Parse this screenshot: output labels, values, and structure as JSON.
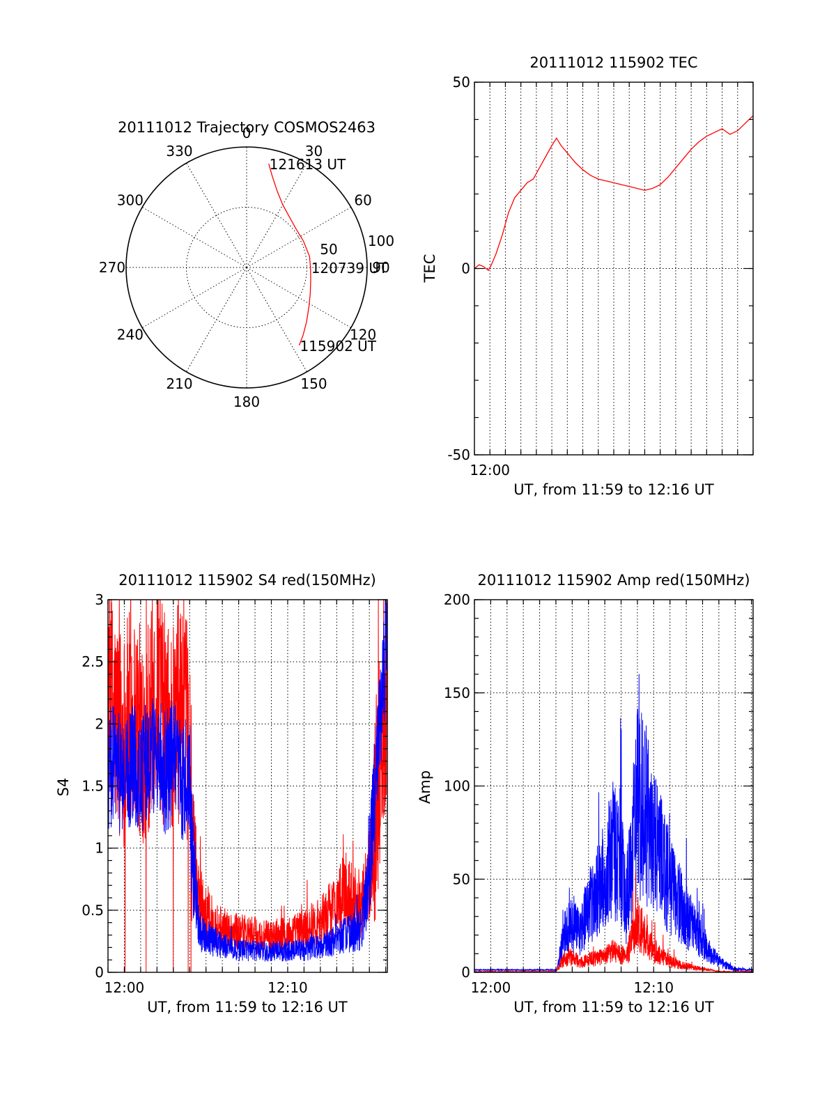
{
  "chart_data": [
    {
      "id": "polar",
      "type": "polar-trajectory",
      "title": "20111012 Trajectory COSMOS2463",
      "azimuth_labels": [
        {
          "az": 0,
          "text": "0"
        },
        {
          "az": 30,
          "text": "30"
        },
        {
          "az": 60,
          "text": "60"
        },
        {
          "az": 90,
          "text": "90"
        },
        {
          "az": 120,
          "text": "120"
        },
        {
          "az": 150,
          "text": "150"
        },
        {
          "az": 180,
          "text": "180"
        },
        {
          "az": 210,
          "text": "210"
        },
        {
          "az": 240,
          "text": "240"
        },
        {
          "az": 270,
          "text": "270"
        },
        {
          "az": 300,
          "text": "300"
        },
        {
          "az": 330,
          "text": "330"
        }
      ],
      "radius_labels": [
        {
          "r": 50,
          "text": "50"
        },
        {
          "r": 100,
          "text": "100"
        }
      ],
      "r_max": 100,
      "track_color": "#ff0000",
      "track": [
        [
          12,
          88
        ],
        [
          16,
          78
        ],
        [
          22,
          68
        ],
        [
          30,
          60
        ],
        [
          40,
          55
        ],
        [
          52,
          52
        ],
        [
          65,
          52
        ],
        [
          80,
          53
        ],
        [
          90,
          53
        ],
        [
          100,
          54
        ],
        [
          112,
          57
        ],
        [
          122,
          61
        ],
        [
          132,
          67
        ],
        [
          140,
          73
        ],
        [
          146,
          78
        ]
      ],
      "time_labels": [
        {
          "text": "121613 UT",
          "az": 12,
          "r": 88
        },
        {
          "text": "120739 UT",
          "az": 90,
          "r": 53
        },
        {
          "text": "115902 UT",
          "az": 146,
          "r": 78
        }
      ]
    },
    {
      "id": "tec",
      "type": "line",
      "title": "20111012 115902 TEC",
      "xlabel": "UT, from 11:59 to 12:16 UT",
      "ylabel": "TEC",
      "x_unit": "minutes after 11:59 UT",
      "xlim": [
        0,
        18
      ],
      "ylim": [
        -50,
        50
      ],
      "yticks": [
        -50,
        0,
        50
      ],
      "xtick_labels": [
        {
          "x": 1,
          "text": "12:00"
        }
      ],
      "grid": true,
      "series": [
        {
          "color": "#ff0000",
          "x": [
            0,
            0.3,
            0.6,
            0.9,
            1.1,
            1.4,
            1.8,
            2.2,
            2.6,
            3.0,
            3.4,
            3.8,
            4.2,
            4.6,
            5.0,
            5.3,
            5.6,
            6.0,
            6.5,
            7.0,
            7.5,
            8.0,
            8.5,
            9.0,
            9.5,
            10.0,
            10.5,
            11.0,
            11.5,
            12.0,
            12.5,
            13.0,
            13.5,
            14.0,
            14.5,
            15.0,
            15.5,
            16.0,
            16.5,
            17.0,
            17.5,
            18.0
          ],
          "y": [
            0,
            1,
            0.5,
            -0.5,
            1,
            4,
            9,
            15,
            19,
            21,
            23,
            24,
            27,
            30,
            33,
            35,
            33,
            31,
            28.5,
            26.5,
            25,
            24,
            23.5,
            23,
            22.5,
            22,
            21.5,
            21,
            21.5,
            22.5,
            24.5,
            27,
            29.5,
            32,
            34,
            35.5,
            36.5,
            37.5,
            36,
            37,
            39,
            41
          ]
        }
      ]
    },
    {
      "id": "s4",
      "type": "line",
      "title": "20111012 115902 S4 red(150MHz)",
      "xlabel": "UT, from 11:59 to 12:16 UT",
      "ylabel": "S4",
      "x_unit": "minutes after 11:59 UT",
      "xlim": [
        0,
        17.1
      ],
      "ylim": [
        0,
        3
      ],
      "yticks": [
        0,
        0.5,
        1,
        1.5,
        2,
        2.5,
        3
      ],
      "ytick_labels": [
        "0",
        "0.5",
        "1",
        "1.5",
        "2",
        "2.5",
        "3"
      ],
      "xtick_labels": [
        {
          "x": 1,
          "text": "12:00"
        },
        {
          "x": 11,
          "text": "12:10"
        }
      ],
      "grid": true,
      "series": [
        {
          "color": "#ff0000",
          "x": [
            0,
            0.5,
            1,
            1.5,
            2,
            2.5,
            3,
            3.5,
            4,
            4.5,
            5,
            5.2,
            5.6,
            6,
            6.5,
            7,
            7.5,
            8,
            8.5,
            9,
            9.5,
            10,
            10.5,
            11,
            11.5,
            12,
            12.5,
            13,
            13.5,
            14,
            14.5,
            15,
            15.5,
            16,
            16.5,
            17,
            17.1
          ],
          "y": [
            2.3,
            2.0,
            1.9,
            2.1,
            1.9,
            2.0,
            2.3,
            2.0,
            1.9,
            2.2,
            1.8,
            1.0,
            0.6,
            0.45,
            0.4,
            0.35,
            0.33,
            0.32,
            0.3,
            0.3,
            0.28,
            0.28,
            0.3,
            0.3,
            0.32,
            0.35,
            0.38,
            0.42,
            0.48,
            0.55,
            0.65,
            0.6,
            0.5,
            0.8,
            1.5,
            2.2,
            2.5
          ]
        },
        {
          "color": "#0000ff",
          "x": [
            0,
            0.5,
            1,
            1.5,
            2,
            2.5,
            3,
            3.5,
            4,
            4.5,
            5,
            5.2,
            5.6,
            6,
            6.5,
            7,
            7.5,
            8,
            8.5,
            9,
            9.5,
            10,
            10.5,
            11,
            11.5,
            12,
            12.5,
            13,
            13.5,
            14,
            14.5,
            15,
            15.5,
            16,
            16.5,
            17,
            17.1
          ],
          "y": [
            1.6,
            1.7,
            1.5,
            1.7,
            1.6,
            1.7,
            1.8,
            1.6,
            1.7,
            1.5,
            1.6,
            0.9,
            0.33,
            0.28,
            0.25,
            0.22,
            0.2,
            0.18,
            0.18,
            0.17,
            0.17,
            0.17,
            0.17,
            0.17,
            0.18,
            0.18,
            0.2,
            0.22,
            0.24,
            0.27,
            0.3,
            0.32,
            0.35,
            0.8,
            1.8,
            2.6,
            2.8
          ]
        }
      ]
    },
    {
      "id": "amp",
      "type": "line",
      "title": "20111012 115902 Amp red(150MHz)",
      "xlabel": "UT, from 11:59 to 12:16 UT",
      "ylabel": "Amp",
      "x_unit": "minutes after 11:59 UT",
      "xlim": [
        0,
        17.1
      ],
      "ylim": [
        0,
        200
      ],
      "yticks": [
        0,
        50,
        100,
        150,
        200
      ],
      "xtick_labels": [
        {
          "x": 1,
          "text": "12:00"
        },
        {
          "x": 11,
          "text": "12:10"
        }
      ],
      "grid": true,
      "series": [
        {
          "color": "#0000ff",
          "x": [
            0,
            1,
            2,
            3,
            4,
            5,
            5.1,
            5.5,
            6,
            6.5,
            7,
            7.5,
            8,
            8.5,
            9,
            9.3,
            9.6,
            10,
            10.5,
            11,
            11.5,
            12,
            12.5,
            13,
            13.5,
            14,
            14.5,
            15,
            15.5,
            16,
            17.1
          ],
          "y": [
            1,
            1,
            1,
            1,
            1,
            1,
            3,
            25,
            30,
            25,
            40,
            50,
            60,
            80,
            70,
            40,
            70,
            110,
            100,
            80,
            70,
            55,
            45,
            35,
            28,
            20,
            12,
            7,
            4,
            2,
            1
          ]
        },
        {
          "color": "#ff0000",
          "x": [
            0,
            1,
            2,
            3,
            4,
            5,
            5.1,
            5.5,
            6,
            6.5,
            7,
            7.5,
            8,
            8.5,
            9,
            9.3,
            9.6,
            10,
            10.5,
            11,
            11.5,
            12,
            12.5,
            13,
            13.5,
            14,
            14.5,
            15,
            15.5,
            16,
            17.1
          ],
          "y": [
            0,
            0,
            0,
            0,
            0,
            0,
            2,
            8,
            10,
            6,
            8,
            9,
            10,
            13,
            12,
            8,
            20,
            32,
            22,
            14,
            10,
            7,
            5,
            4,
            3,
            2,
            1,
            0,
            0,
            0,
            0
          ]
        }
      ]
    }
  ]
}
